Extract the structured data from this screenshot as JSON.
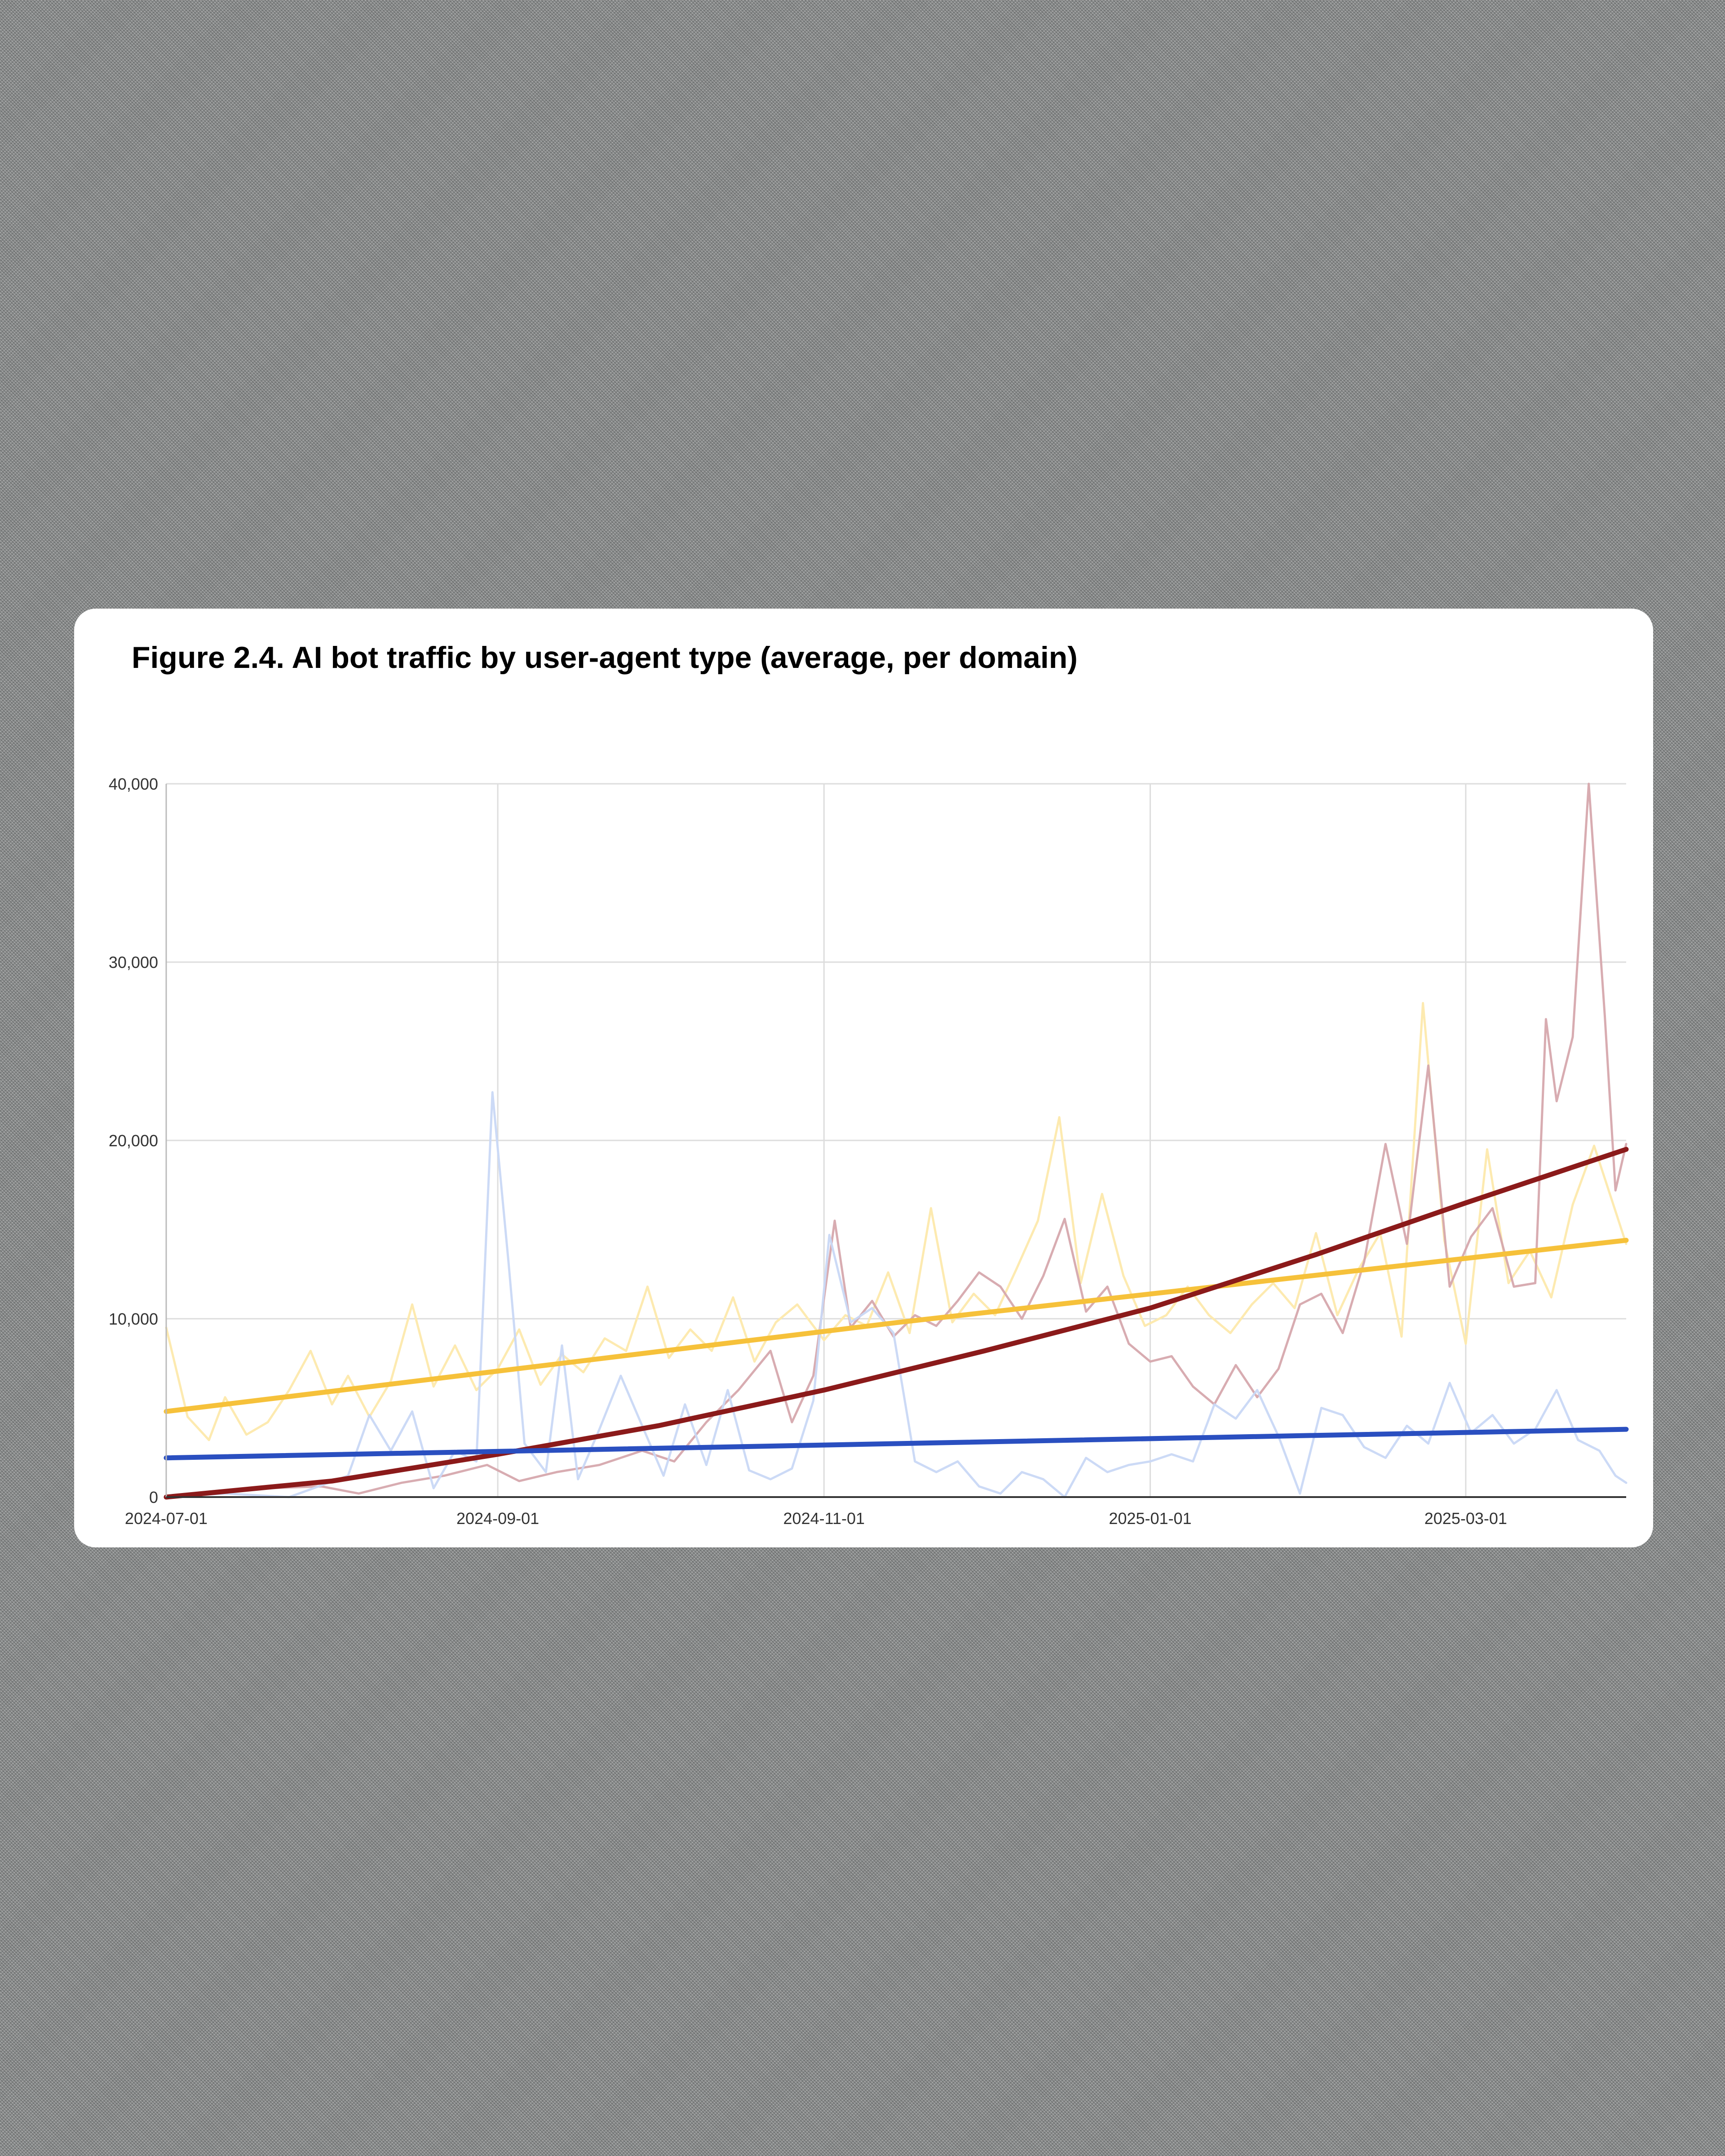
{
  "chart_data": {
    "type": "line",
    "title": "Figure 2.4. AI bot traffic by user-agent type (average, per domain)",
    "xlabel": "",
    "ylabel": "",
    "x_range": [
      "2024-07-01",
      "2025-03-31"
    ],
    "ylim": [
      0,
      40000
    ],
    "y_ticks": [
      0,
      10000,
      20000,
      30000,
      40000
    ],
    "y_tick_labels": [
      "0",
      "10,000",
      "20,000",
      "30,000",
      "40,000"
    ],
    "x_ticks": [
      "2024-07-01",
      "2024-09-01",
      "2024-11-01",
      "2025-01-01",
      "2025-03-01"
    ],
    "grid": true,
    "legend": "none",
    "series": [
      {
        "color": "#fde9ac",
        "style": "raw",
        "points": [
          [
            "2024-07-01",
            9500
          ],
          [
            "2024-07-05",
            4500
          ],
          [
            "2024-07-09",
            3200
          ],
          [
            "2024-07-12",
            5600
          ],
          [
            "2024-07-16",
            3500
          ],
          [
            "2024-07-20",
            4200
          ],
          [
            "2024-07-24",
            6000
          ],
          [
            "2024-07-28",
            8200
          ],
          [
            "2024-08-01",
            5200
          ],
          [
            "2024-08-04",
            6800
          ],
          [
            "2024-08-08",
            4500
          ],
          [
            "2024-08-12",
            6500
          ],
          [
            "2024-08-16",
            10800
          ],
          [
            "2024-08-20",
            6200
          ],
          [
            "2024-08-24",
            8500
          ],
          [
            "2024-08-28",
            6000
          ],
          [
            "2024-09-01",
            7200
          ],
          [
            "2024-09-05",
            9400
          ],
          [
            "2024-09-09",
            6300
          ],
          [
            "2024-09-13",
            8000
          ],
          [
            "2024-09-17",
            7000
          ],
          [
            "2024-09-21",
            8900
          ],
          [
            "2024-09-25",
            8200
          ],
          [
            "2024-09-29",
            11800
          ],
          [
            "2024-10-03",
            7800
          ],
          [
            "2024-10-07",
            9400
          ],
          [
            "2024-10-11",
            8200
          ],
          [
            "2024-10-15",
            11200
          ],
          [
            "2024-10-19",
            7600
          ],
          [
            "2024-10-23",
            9800
          ],
          [
            "2024-10-27",
            10800
          ],
          [
            "2024-11-01",
            8800
          ],
          [
            "2024-11-05",
            10200
          ],
          [
            "2024-11-09",
            9600
          ],
          [
            "2024-11-13",
            12600
          ],
          [
            "2024-11-17",
            9200
          ],
          [
            "2024-11-21",
            16200
          ],
          [
            "2024-11-25",
            9800
          ],
          [
            "2024-11-29",
            11400
          ],
          [
            "2024-12-03",
            10200
          ],
          [
            "2024-12-07",
            12800
          ],
          [
            "2024-12-11",
            15500
          ],
          [
            "2024-12-15",
            21300
          ],
          [
            "2024-12-19",
            12000
          ],
          [
            "2024-12-23",
            17000
          ],
          [
            "2024-12-27",
            12400
          ],
          [
            "2024-12-31",
            9600
          ],
          [
            "2025-01-04",
            10200
          ],
          [
            "2025-01-08",
            11800
          ],
          [
            "2025-01-12",
            10200
          ],
          [
            "2025-01-16",
            9200
          ],
          [
            "2025-01-20",
            10800
          ],
          [
            "2025-01-24",
            12000
          ],
          [
            "2025-01-28",
            10600
          ],
          [
            "2025-02-01",
            14800
          ],
          [
            "2025-02-05",
            10200
          ],
          [
            "2025-02-09",
            12800
          ],
          [
            "2025-02-13",
            14800
          ],
          [
            "2025-02-17",
            9000
          ],
          [
            "2025-02-21",
            27700
          ],
          [
            "2025-02-25",
            14400
          ],
          [
            "2025-03-01",
            8600
          ],
          [
            "2025-03-05",
            19500
          ],
          [
            "2025-03-09",
            12000
          ],
          [
            "2025-03-13",
            13800
          ],
          [
            "2025-03-17",
            11200
          ],
          [
            "2025-03-21",
            16400
          ],
          [
            "2025-03-25",
            19700
          ],
          [
            "2025-03-31",
            14200
          ]
        ]
      },
      {
        "color": "#d6a8ad",
        "style": "raw",
        "points": [
          [
            "2024-07-01",
            0
          ],
          [
            "2024-07-10",
            300
          ],
          [
            "2024-07-20",
            500
          ],
          [
            "2024-07-30",
            600
          ],
          [
            "2024-08-06",
            200
          ],
          [
            "2024-08-14",
            800
          ],
          [
            "2024-08-22",
            1200
          ],
          [
            "2024-08-30",
            1800
          ],
          [
            "2024-09-05",
            900
          ],
          [
            "2024-09-12",
            1400
          ],
          [
            "2024-09-20",
            1800
          ],
          [
            "2024-09-28",
            2600
          ],
          [
            "2024-10-04",
            2000
          ],
          [
            "2024-10-10",
            4200
          ],
          [
            "2024-10-16",
            6000
          ],
          [
            "2024-10-22",
            8200
          ],
          [
            "2024-10-26",
            4200
          ],
          [
            "2024-10-30",
            6800
          ],
          [
            "2024-11-03",
            15500
          ],
          [
            "2024-11-06",
            9500
          ],
          [
            "2024-11-10",
            11000
          ],
          [
            "2024-11-14",
            9000
          ],
          [
            "2024-11-18",
            10200
          ],
          [
            "2024-11-22",
            9600
          ],
          [
            "2024-11-26",
            11000
          ],
          [
            "2024-11-30",
            12600
          ],
          [
            "2024-12-04",
            11800
          ],
          [
            "2024-12-08",
            10000
          ],
          [
            "2024-12-12",
            12400
          ],
          [
            "2024-12-16",
            15600
          ],
          [
            "2024-12-20",
            10400
          ],
          [
            "2024-12-24",
            11800
          ],
          [
            "2024-12-28",
            8600
          ],
          [
            "2025-01-01",
            7600
          ],
          [
            "2025-01-05",
            7900
          ],
          [
            "2025-01-09",
            6200
          ],
          [
            "2025-01-13",
            5200
          ],
          [
            "2025-01-17",
            7400
          ],
          [
            "2025-01-21",
            5600
          ],
          [
            "2025-01-25",
            7200
          ],
          [
            "2025-01-29",
            10800
          ],
          [
            "2025-02-02",
            11400
          ],
          [
            "2025-02-06",
            9200
          ],
          [
            "2025-02-10",
            13200
          ],
          [
            "2025-02-14",
            19800
          ],
          [
            "2025-02-18",
            14200
          ],
          [
            "2025-02-22",
            24200
          ],
          [
            "2025-02-26",
            11800
          ],
          [
            "2025-03-02",
            14600
          ],
          [
            "2025-03-06",
            16200
          ],
          [
            "2025-03-10",
            11800
          ],
          [
            "2025-03-14",
            12000
          ],
          [
            "2025-03-16",
            26800
          ],
          [
            "2025-03-18",
            22200
          ],
          [
            "2025-03-21",
            25800
          ],
          [
            "2025-03-24",
            40000
          ],
          [
            "2025-03-27",
            27000
          ],
          [
            "2025-03-29",
            17200
          ],
          [
            "2025-03-31",
            19800
          ]
        ]
      },
      {
        "color": "#c9d8f5",
        "style": "raw",
        "points": [
          [
            "2024-07-01",
            0
          ],
          [
            "2024-07-12",
            200
          ],
          [
            "2024-07-24",
            0
          ],
          [
            "2024-08-04",
            1200
          ],
          [
            "2024-08-08",
            4600
          ],
          [
            "2024-08-12",
            2600
          ],
          [
            "2024-08-16",
            4800
          ],
          [
            "2024-08-20",
            500
          ],
          [
            "2024-08-24",
            2600
          ],
          [
            "2024-08-28",
            2000
          ],
          [
            "2024-08-31",
            22700
          ],
          [
            "2024-09-03",
            13200
          ],
          [
            "2024-09-06",
            3000
          ],
          [
            "2024-09-10",
            1400
          ],
          [
            "2024-09-13",
            8500
          ],
          [
            "2024-09-16",
            1000
          ],
          [
            "2024-09-20",
            3800
          ],
          [
            "2024-09-24",
            6800
          ],
          [
            "2024-09-28",
            4000
          ],
          [
            "2024-10-02",
            1200
          ],
          [
            "2024-10-06",
            5200
          ],
          [
            "2024-10-10",
            1800
          ],
          [
            "2024-10-14",
            6000
          ],
          [
            "2024-10-18",
            1500
          ],
          [
            "2024-10-22",
            1000
          ],
          [
            "2024-10-26",
            1600
          ],
          [
            "2024-10-30",
            5400
          ],
          [
            "2024-11-02",
            14700
          ],
          [
            "2024-11-06",
            9800
          ],
          [
            "2024-11-10",
            10600
          ],
          [
            "2024-11-14",
            9200
          ],
          [
            "2024-11-18",
            2000
          ],
          [
            "2024-11-22",
            1400
          ],
          [
            "2024-11-26",
            2000
          ],
          [
            "2024-11-30",
            600
          ],
          [
            "2024-12-04",
            200
          ],
          [
            "2024-12-08",
            1400
          ],
          [
            "2024-12-12",
            1000
          ],
          [
            "2024-12-16",
            0
          ],
          [
            "2024-12-20",
            2200
          ],
          [
            "2024-12-24",
            1400
          ],
          [
            "2024-12-28",
            1800
          ],
          [
            "2025-01-01",
            2000
          ],
          [
            "2025-01-05",
            2400
          ],
          [
            "2025-01-09",
            2000
          ],
          [
            "2025-01-13",
            5200
          ],
          [
            "2025-01-17",
            4400
          ],
          [
            "2025-01-21",
            6000
          ],
          [
            "2025-01-25",
            3400
          ],
          [
            "2025-01-29",
            200
          ],
          [
            "2025-02-02",
            5000
          ],
          [
            "2025-02-06",
            4600
          ],
          [
            "2025-02-10",
            2800
          ],
          [
            "2025-02-14",
            2200
          ],
          [
            "2025-02-18",
            4000
          ],
          [
            "2025-02-22",
            3000
          ],
          [
            "2025-02-26",
            6400
          ],
          [
            "2025-03-02",
            3600
          ],
          [
            "2025-03-06",
            4600
          ],
          [
            "2025-03-10",
            3000
          ],
          [
            "2025-03-14",
            3800
          ],
          [
            "2025-03-18",
            6000
          ],
          [
            "2025-03-22",
            3200
          ],
          [
            "2025-03-26",
            2600
          ],
          [
            "2025-03-29",
            1200
          ],
          [
            "2025-03-31",
            800
          ]
        ]
      },
      {
        "color": "#f6c13a",
        "style": "trend",
        "points": [
          [
            "2024-07-01",
            4800
          ],
          [
            "2024-11-15",
            9800
          ],
          [
            "2025-03-31",
            14400
          ]
        ]
      },
      {
        "color": "#8b1a1a",
        "style": "trend",
        "points": [
          [
            "2024-07-01",
            0
          ],
          [
            "2024-08-01",
            900
          ],
          [
            "2024-09-01",
            2400
          ],
          [
            "2024-10-01",
            4000
          ],
          [
            "2024-11-01",
            6000
          ],
          [
            "2024-12-01",
            8200
          ],
          [
            "2025-01-01",
            10600
          ],
          [
            "2025-02-01",
            13600
          ],
          [
            "2025-03-01",
            16500
          ],
          [
            "2025-03-31",
            19500
          ]
        ]
      },
      {
        "color": "#2a4fc0",
        "style": "trend",
        "points": [
          [
            "2024-07-01",
            2200
          ],
          [
            "2024-11-15",
            3000
          ],
          [
            "2025-03-31",
            3800
          ]
        ]
      }
    ]
  }
}
